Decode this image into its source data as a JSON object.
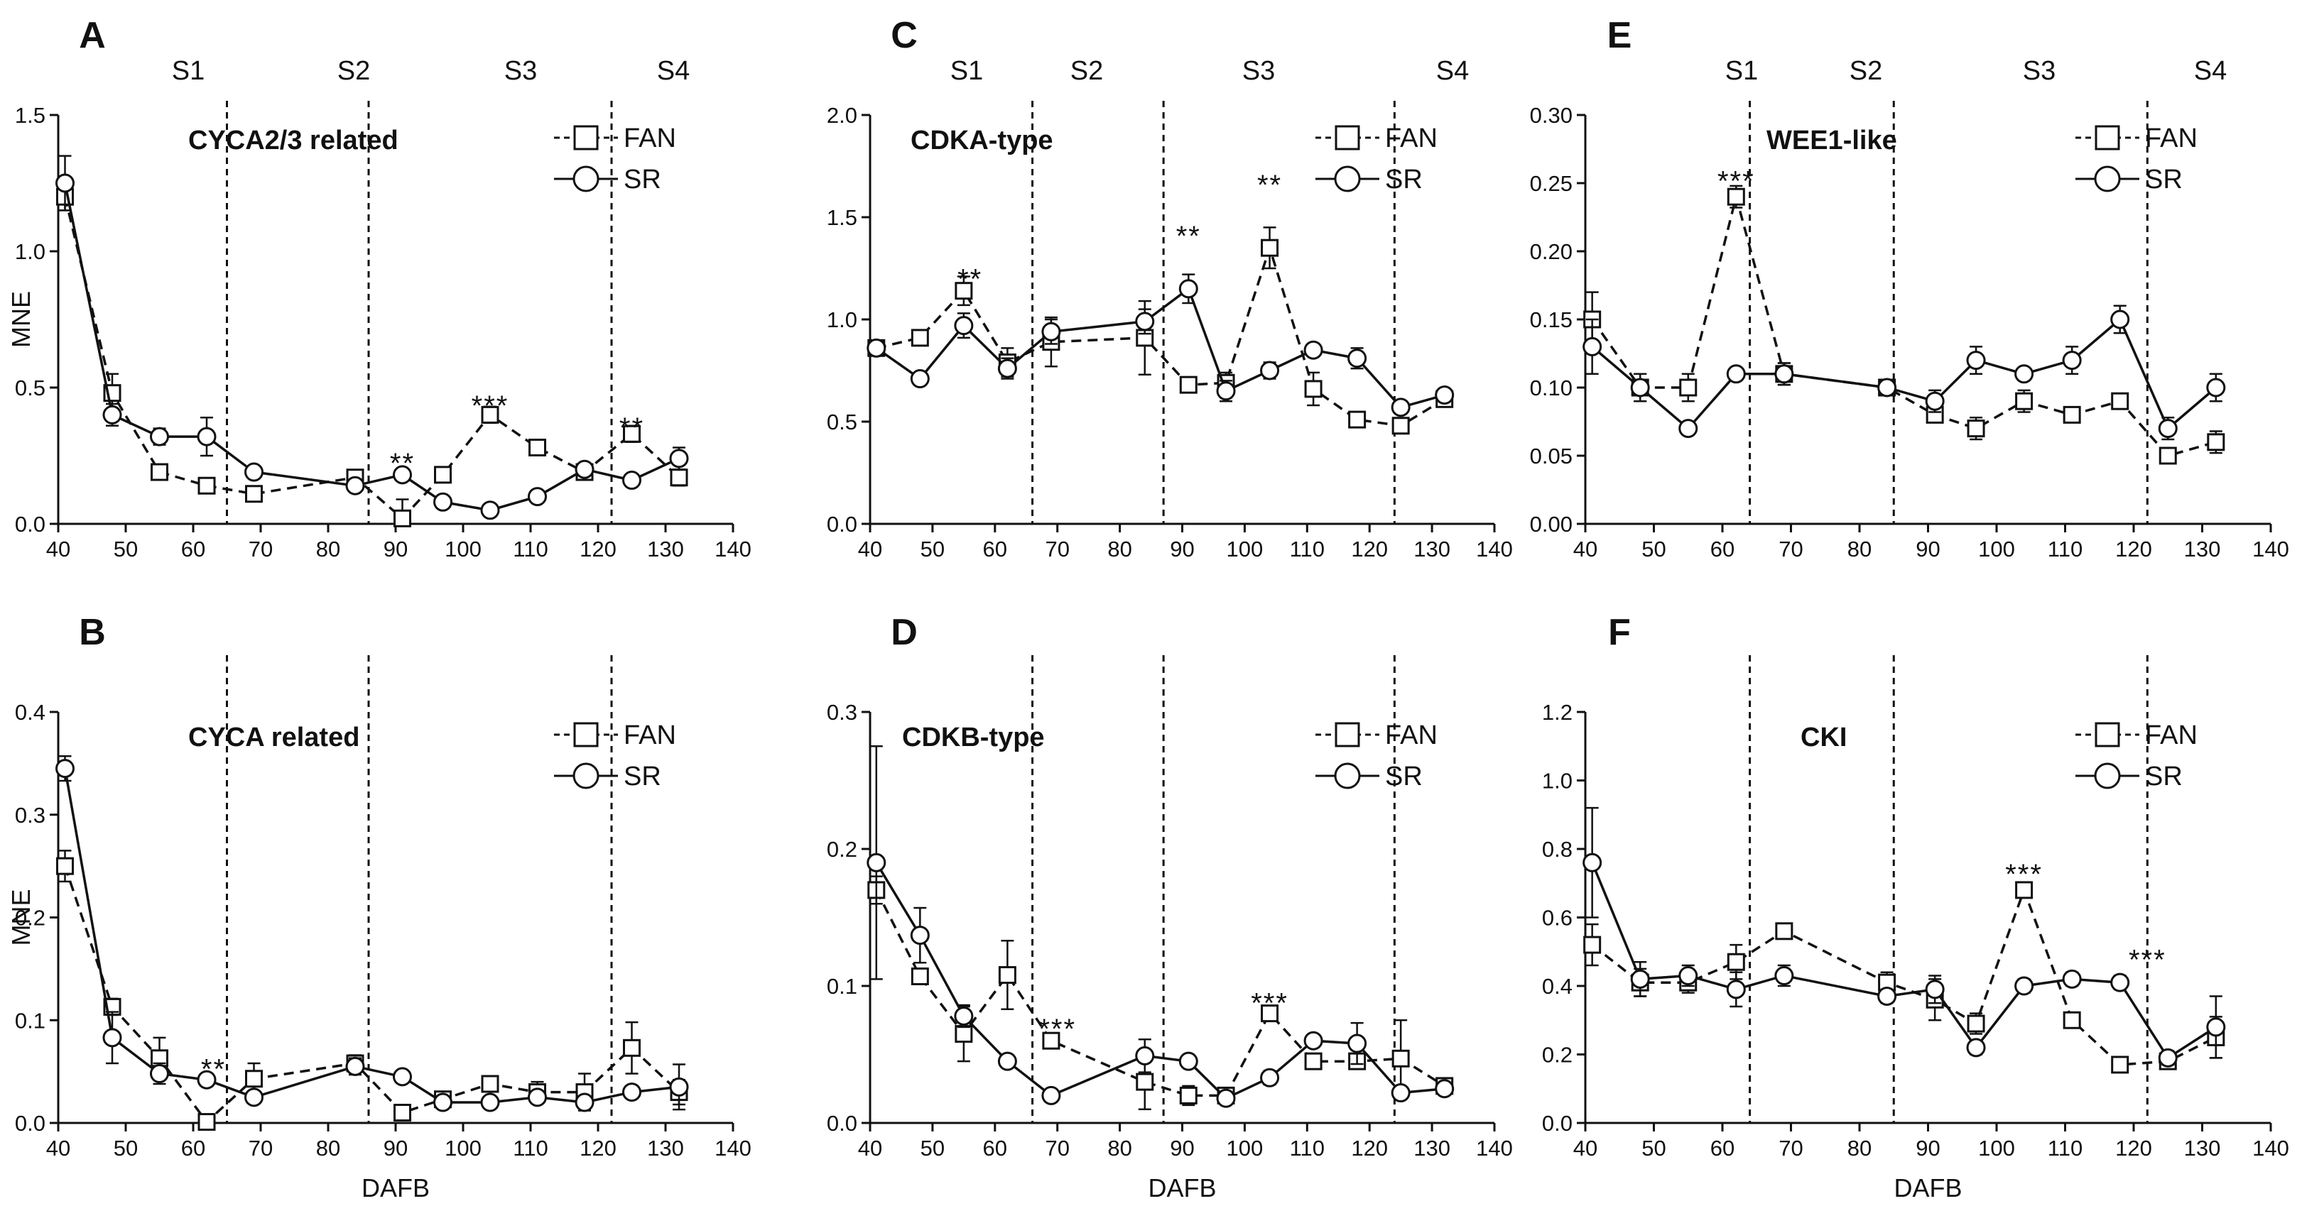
{
  "chart_data": [
    {
      "type": "line",
      "panel": "A",
      "title": "CYCA2/3 related",
      "xlabel": "",
      "ylabel": "MNE",
      "xlim": [
        40,
        140
      ],
      "ylim": [
        0,
        1.5
      ],
      "xticks": [
        "40",
        "50",
        "60",
        "70",
        "80",
        "90",
        "100",
        "110",
        "120",
        "130",
        "140"
      ],
      "yticks": [
        "0.0",
        "0.5",
        "1.0",
        "1.5"
      ],
      "stages": [
        "S1",
        "S2",
        "S3",
        "S4"
      ],
      "boundaries": [
        65,
        86,
        122
      ],
      "legend": [
        "FAN",
        "SR"
      ],
      "series": [
        {
          "name": "FAN",
          "style": "dashed-square",
          "x": [
            41,
            48,
            55,
            62,
            69,
            84,
            91,
            97,
            104,
            111,
            118,
            125,
            132
          ],
          "values": [
            1.2,
            0.48,
            0.19,
            0.14,
            0.11,
            0.17,
            0.02,
            0.18,
            0.4,
            0.28,
            0.19,
            0.33,
            0.17
          ],
          "errors": [
            0.05,
            0.07,
            0.02,
            0.02,
            0.02,
            0.02,
            0.07,
            0.02,
            0.03,
            0.02,
            0.02,
            0.03,
            0.03
          ]
        },
        {
          "name": "SR",
          "style": "solid-circle",
          "x": [
            41,
            48,
            55,
            62,
            69,
            84,
            91,
            97,
            104,
            111,
            118,
            125,
            132
          ],
          "values": [
            1.25,
            0.4,
            0.32,
            0.32,
            0.19,
            0.14,
            0.18,
            0.08,
            0.05,
            0.1,
            0.2,
            0.16,
            0.24
          ],
          "errors": [
            0.1,
            0.04,
            0.03,
            0.07,
            0.02,
            0.02,
            0.02,
            0.02,
            0.01,
            0.02,
            0.02,
            0.02,
            0.04
          ]
        }
      ],
      "annotations": [
        {
          "x": 91,
          "y": 0.24,
          "text": "**"
        },
        {
          "x": 104,
          "y": 0.45,
          "text": "***"
        },
        {
          "x": 125,
          "y": 0.37,
          "text": "**"
        }
      ]
    },
    {
      "type": "line",
      "panel": "B",
      "title": "CYCA related",
      "xlabel": "DAFB",
      "ylabel": "MNE",
      "xlim": [
        40,
        140
      ],
      "ylim": [
        0,
        0.4
      ],
      "xticks": [
        "40",
        "50",
        "60",
        "70",
        "80",
        "90",
        "100",
        "110",
        "120",
        "130",
        "140"
      ],
      "yticks": [
        "0.0",
        "0.1",
        "0.2",
        "0.3",
        "0.4"
      ],
      "stages": [],
      "boundaries": [
        65,
        86,
        122
      ],
      "legend": [
        "FAN",
        "SR"
      ],
      "series": [
        {
          "name": "FAN",
          "style": "dashed-square",
          "x": [
            41,
            48,
            55,
            62,
            69,
            84,
            91,
            97,
            104,
            111,
            118,
            125,
            132
          ],
          "values": [
            0.25,
            0.113,
            0.063,
            0.001,
            0.043,
            0.058,
            0.01,
            0.023,
            0.038,
            0.03,
            0.03,
            0.073,
            0.03
          ],
          "errors": [
            0.015,
            0.008,
            0.02,
            0.003,
            0.015,
            0.008,
            0.005,
            0.005,
            0.005,
            0.01,
            0.018,
            0.025,
            0.012
          ]
        },
        {
          "name": "SR",
          "style": "solid-circle",
          "x": [
            41,
            48,
            55,
            62,
            69,
            84,
            91,
            97,
            104,
            111,
            118,
            125,
            132
          ],
          "values": [
            0.345,
            0.083,
            0.048,
            0.042,
            0.025,
            0.055,
            0.045,
            0.02,
            0.02,
            0.025,
            0.02,
            0.03,
            0.035
          ],
          "errors": [
            0.012,
            0.025,
            0.01,
            0.005,
            0.005,
            0.008,
            0.005,
            0.004,
            0.004,
            0.005,
            0.005,
            0.005,
            0.022
          ]
        }
      ],
      "annotations": [
        {
          "x": 63,
          "y": 0.057,
          "text": "**"
        }
      ]
    },
    {
      "type": "line",
      "panel": "C",
      "title": "CDKA-type",
      "xlabel": "",
      "ylabel": "",
      "xlim": [
        40,
        140
      ],
      "ylim": [
        0,
        2.0
      ],
      "xticks": [
        "40",
        "50",
        "60",
        "70",
        "80",
        "90",
        "100",
        "110",
        "120",
        "130",
        "140"
      ],
      "yticks": [
        "0.0",
        "0.5",
        "1.0",
        "1.5",
        "2.0"
      ],
      "stages": [
        "S1",
        "S2",
        "S3",
        "S4"
      ],
      "boundaries": [
        66,
        87,
        124
      ],
      "legend": [
        "FAN",
        "SR"
      ],
      "series": [
        {
          "name": "FAN",
          "style": "dashed-square",
          "x": [
            41,
            48,
            55,
            62,
            69,
            84,
            91,
            97,
            104,
            111,
            118,
            125,
            132
          ],
          "values": [
            0.86,
            0.91,
            1.14,
            0.79,
            0.89,
            0.91,
            0.68,
            0.69,
            1.35,
            0.66,
            0.51,
            0.48,
            0.61
          ],
          "errors": [
            0.03,
            0.03,
            0.07,
            0.07,
            0.12,
            0.18,
            0.03,
            0.05,
            0.1,
            0.08,
            0.03,
            0.03,
            0.03
          ]
        },
        {
          "name": "SR",
          "style": "solid-circle",
          "x": [
            41,
            48,
            55,
            62,
            69,
            84,
            91,
            97,
            104,
            111,
            118,
            125,
            132
          ],
          "values": [
            0.86,
            0.71,
            0.97,
            0.76,
            0.94,
            0.99,
            1.15,
            0.65,
            0.75,
            0.85,
            0.81,
            0.57,
            0.63
          ],
          "errors": [
            0.03,
            0.02,
            0.06,
            0.05,
            0.06,
            0.06,
            0.07,
            0.05,
            0.04,
            0.03,
            0.05,
            0.03,
            0.03
          ]
        }
      ],
      "annotations": [
        {
          "x": 56,
          "y": 1.22,
          "text": "**"
        },
        {
          "x": 91,
          "y": 1.43,
          "text": "**"
        },
        {
          "x": 104,
          "y": 1.68,
          "text": "**"
        }
      ]
    },
    {
      "type": "line",
      "panel": "D",
      "title": "CDKB-type",
      "xlabel": "DAFB",
      "ylabel": "",
      "xlim": [
        40,
        140
      ],
      "ylim": [
        0,
        0.3
      ],
      "xticks": [
        "40",
        "50",
        "60",
        "70",
        "80",
        "90",
        "100",
        "110",
        "120",
        "130",
        "140"
      ],
      "yticks": [
        "0.0",
        "0.1",
        "0.2",
        "0.3"
      ],
      "stages": [],
      "boundaries": [
        66,
        87,
        124
      ],
      "legend": [
        "FAN",
        "SR"
      ],
      "series": [
        {
          "name": "FAN",
          "style": "dashed-square",
          "x": [
            41,
            48,
            55,
            62,
            69,
            84,
            91,
            97,
            104,
            111,
            118,
            125,
            132
          ],
          "values": [
            0.17,
            0.107,
            0.065,
            0.108,
            0.06,
            0.03,
            0.02,
            0.02,
            0.08,
            0.045,
            0.045,
            0.047,
            0.027
          ],
          "errors": [
            0.01,
            0.005,
            0.02,
            0.025,
            0.003,
            0.02,
            0.007,
            0.003,
            0.003,
            0.005,
            0.005,
            0.028,
            0.003
          ]
        },
        {
          "name": "SR",
          "style": "solid-circle",
          "x": [
            41,
            48,
            55,
            62,
            69,
            84,
            91,
            97,
            104,
            111,
            118,
            125,
            132
          ],
          "values": [
            0.19,
            0.137,
            0.078,
            0.045,
            0.02,
            0.049,
            0.045,
            0.018,
            0.033,
            0.06,
            0.058,
            0.022,
            0.025
          ],
          "errors": [
            0.085,
            0.02,
            0.008,
            0.003,
            0.002,
            0.012,
            0.003,
            0.002,
            0.005,
            0.003,
            0.015,
            0.003,
            0.003
          ]
        }
      ],
      "annotations": [
        {
          "x": 70,
          "y": 0.072,
          "text": "***"
        },
        {
          "x": 104,
          "y": 0.091,
          "text": "***"
        }
      ]
    },
    {
      "type": "line",
      "panel": "E",
      "title": "WEE1-like",
      "xlabel": "",
      "ylabel": "",
      "xlim": [
        40,
        140
      ],
      "ylim": [
        0,
        0.3
      ],
      "xticks": [
        "40",
        "50",
        "60",
        "70",
        "80",
        "90",
        "100",
        "110",
        "120",
        "130",
        "140"
      ],
      "yticks": [
        "0.00",
        "0.05",
        "0.10",
        "0.15",
        "0.20",
        "0.25",
        "0.30"
      ],
      "stages": [
        "S1",
        "S2",
        "S3",
        "S4"
      ],
      "boundaries": [
        64,
        85,
        122
      ],
      "legend": [
        "FAN",
        "SR"
      ],
      "series": [
        {
          "name": "FAN",
          "style": "dashed-square",
          "x": [
            41,
            48,
            55,
            62,
            69,
            84,
            91,
            97,
            104,
            111,
            118,
            125,
            132
          ],
          "values": [
            0.15,
            0.1,
            0.1,
            0.24,
            0.11,
            0.1,
            0.08,
            0.07,
            0.09,
            0.08,
            0.09,
            0.05,
            0.06
          ],
          "errors": [
            0.02,
            0.01,
            0.01,
            0.008,
            0.008,
            0.004,
            0.005,
            0.008,
            0.008,
            0.004,
            0.004,
            0.004,
            0.008
          ]
        },
        {
          "name": "SR",
          "style": "solid-circle",
          "x": [
            41,
            48,
            55,
            62,
            69,
            84,
            91,
            97,
            104,
            111,
            118,
            125,
            132
          ],
          "values": [
            0.13,
            0.1,
            0.07,
            0.11,
            0.11,
            0.1,
            0.09,
            0.12,
            0.11,
            0.12,
            0.15,
            0.07,
            0.1
          ],
          "errors": [
            0.02,
            0.01,
            0.004,
            0.004,
            0.008,
            0.004,
            0.008,
            0.01,
            0.004,
            0.01,
            0.01,
            0.008,
            0.01
          ]
        }
      ],
      "annotations": [
        {
          "x": 62,
          "y": 0.255,
          "text": "***"
        }
      ]
    },
    {
      "type": "line",
      "panel": "F",
      "title": "CKI",
      "xlabel": "DAFB",
      "ylabel": "",
      "xlim": [
        40,
        140
      ],
      "ylim": [
        0,
        1.2
      ],
      "xticks": [
        "40",
        "50",
        "60",
        "70",
        "80",
        "90",
        "100",
        "110",
        "120",
        "130",
        "140"
      ],
      "yticks": [
        "0.0",
        "0.2",
        "0.4",
        "0.6",
        "0.8",
        "1.0",
        "1.2"
      ],
      "stages": [],
      "boundaries": [
        64,
        85,
        122
      ],
      "legend": [
        "FAN",
        "SR"
      ],
      "series": [
        {
          "name": "FAN",
          "style": "dashed-square",
          "x": [
            41,
            48,
            55,
            62,
            69,
            84,
            91,
            97,
            104,
            111,
            118,
            125,
            132
          ],
          "values": [
            0.52,
            0.41,
            0.41,
            0.47,
            0.56,
            0.41,
            0.36,
            0.29,
            0.68,
            0.3,
            0.17,
            0.18,
            0.25
          ],
          "errors": [
            0.06,
            0.04,
            0.03,
            0.05,
            0.02,
            0.03,
            0.06,
            0.03,
            0.02,
            0.02,
            0.02,
            0.02,
            0.06
          ]
        },
        {
          "name": "SR",
          "style": "solid-circle",
          "x": [
            41,
            48,
            55,
            62,
            69,
            84,
            91,
            97,
            104,
            111,
            118,
            125,
            132
          ],
          "values": [
            0.76,
            0.42,
            0.43,
            0.39,
            0.43,
            0.37,
            0.39,
            0.22,
            0.4,
            0.42,
            0.41,
            0.19,
            0.28
          ],
          "errors": [
            0.16,
            0.05,
            0.03,
            0.05,
            0.03,
            0.02,
            0.04,
            0.02,
            0.02,
            0.02,
            0.02,
            0.02,
            0.09
          ]
        }
      ],
      "annotations": [
        {
          "x": 104,
          "y": 0.74,
          "text": "***"
        },
        {
          "x": 122,
          "y": 0.49,
          "text": "***"
        }
      ]
    }
  ]
}
